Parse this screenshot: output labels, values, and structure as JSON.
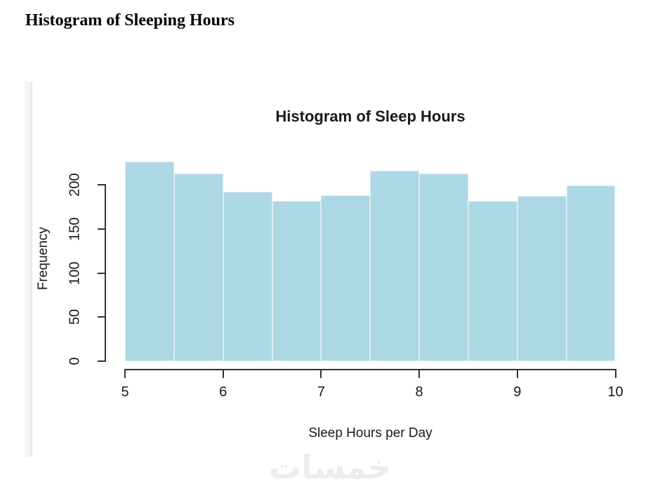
{
  "page": {
    "title": "Histogram of Sleeping Hours"
  },
  "watermark": {
    "text": "خمسات"
  },
  "colors": {
    "background": "#FFFFFF",
    "page_title": "#000000",
    "text": "#1A1A1A",
    "axis": "#333333",
    "bar_fill": "#ADD8E6",
    "bar_border": "#DCEBF2",
    "scrollbar_track": "#F3F4F6",
    "scrollbar_edge": "#E2E4E8",
    "watermark": "#ECECEC"
  },
  "chart_data": {
    "type": "bar",
    "subtype": "histogram",
    "title": "Histogram of Sleep Hours",
    "xlabel": "Sleep Hours per Day",
    "ylabel": "Frequency",
    "bin_width": 0.5,
    "bin_edges": [
      5,
      5.5,
      6,
      6.5,
      7,
      7.5,
      8,
      8.5,
      9,
      9.5,
      10
    ],
    "values": [
      226,
      213,
      192,
      182,
      188,
      216,
      213,
      182,
      187,
      199
    ],
    "x_ticks": [
      5,
      6,
      7,
      8,
      9,
      10
    ],
    "y_ticks": [
      0,
      50,
      100,
      150,
      200
    ],
    "xlim": [
      5,
      10
    ],
    "ylim": [
      0,
      228
    ],
    "grid": false,
    "legend": false
  }
}
